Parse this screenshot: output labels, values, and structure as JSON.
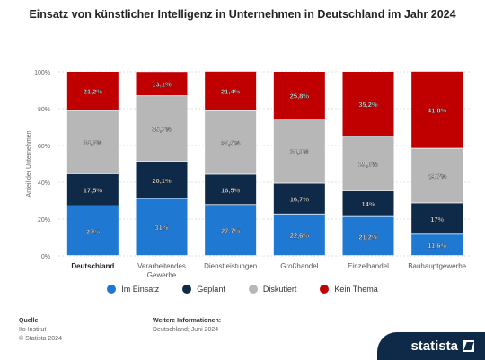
{
  "title": "Einsatz von künstlicher Intelligenz in Unternehmen in Deutschland im Jahr 2024",
  "chart_data": {
    "type": "bar",
    "stacked": true,
    "title": "Einsatz von künstlicher Intelligenz in Unternehmen in Deutschland im Jahr 2024",
    "ylabel": "Anteil der Unternehmen",
    "xlabel": "",
    "ylim": [
      0,
      100
    ],
    "yticks": [
      "0%",
      "20%",
      "40%",
      "60%",
      "80%",
      "100%"
    ],
    "grid": true,
    "legend_position": "bottom",
    "categories": [
      "Deutschland",
      "Verarbeitendes Gewerbe",
      "Dienstleistungen",
      "Großhandel",
      "Einzelhandel",
      "Bauhauptgewerbe"
    ],
    "category_lines": [
      [
        "Deutschland"
      ],
      [
        "Verarbeitendes",
        "Gewerbe"
      ],
      [
        "Dienstleistungen"
      ],
      [
        "Großhandel"
      ],
      [
        "Einzelhandel"
      ],
      [
        "Bauhauptgewerbe"
      ]
    ],
    "series": [
      {
        "name": "Im Einsatz",
        "color": "#1f78d1",
        "values": [
          27,
          31,
          27.7,
          22.6,
          21.2,
          11.6
        ],
        "labels": [
          "27%",
          "31%",
          "27,7%",
          "22,6%",
          "21,2%",
          "11,6%"
        ]
      },
      {
        "name": "Geplant",
        "color": "#0f2a48",
        "values": [
          17.5,
          20.1,
          16.5,
          16.7,
          14,
          17
        ],
        "labels": [
          "17,5%",
          "20,1%",
          "16,5%",
          "16,7%",
          "14%",
          "17%"
        ]
      },
      {
        "name": "Diskutiert",
        "color": "#b7b7b7",
        "values": [
          34.3,
          35.7,
          34.5,
          34.9,
          29.6,
          29.7
        ],
        "labels": [
          "34,3%",
          "35,7%",
          "34,5%",
          "34,9%",
          "29,6%",
          "29,7%"
        ]
      },
      {
        "name": "Kein Thema",
        "color": "#c00000",
        "values": [
          21.2,
          13.1,
          21.4,
          25.8,
          35.2,
          41.8
        ],
        "labels": [
          "21,2%",
          "13,1%",
          "21,4%",
          "25,8%",
          "35,2%",
          "41,8%"
        ]
      }
    ]
  },
  "footer": {
    "source_label": "Quelle",
    "source_lines": [
      "Ifo Institut",
      "© Statista 2024"
    ],
    "info_label": "Weitere Informationen:",
    "info_text": "Deutschland; Juni 2024",
    "brand": "statista"
  }
}
